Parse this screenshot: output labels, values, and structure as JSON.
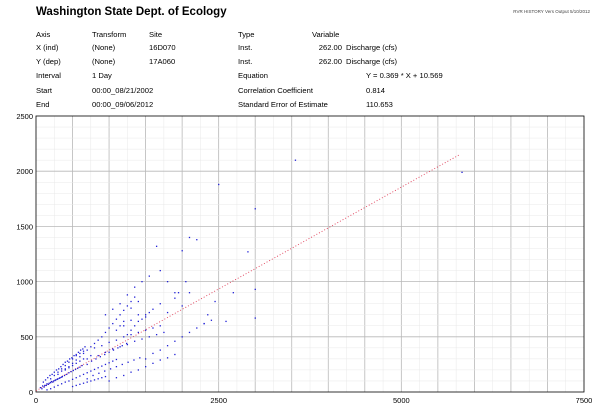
{
  "header": {
    "title": "Washington State Dept. of Ecology",
    "stamp": "RVR HISTORY Vers Output 5/10/2012",
    "columns": {
      "axis": "Axis",
      "transform": "Transform",
      "site": "Site",
      "type": "Type",
      "variable": "Variable"
    },
    "x_row": {
      "axis": "X (ind)",
      "transform": "(None)",
      "site": "16D070",
      "type": "Inst.",
      "code": "262.00",
      "variable": "Discharge (cfs)"
    },
    "y_row": {
      "axis": "Y (dep)",
      "transform": "(None)",
      "site": "17A060",
      "type": "Inst.",
      "code": "262.00",
      "variable": "Discharge (cfs)"
    },
    "interval": {
      "label": "Interval",
      "value": "1 Day"
    },
    "start": {
      "label": "Start",
      "value": "00:00_08/21/2002"
    },
    "end": {
      "label": "End",
      "value": "00:00_09/06/2012"
    },
    "equation": {
      "label": "Equation",
      "value": "Y = 0.369 * X + 10.569"
    },
    "correlation": {
      "label": "Correlation Coefficient",
      "value": "0.814"
    },
    "std_error": {
      "label": "Standard Error of Estimate",
      "value": "110.653"
    }
  },
  "chart_data": {
    "type": "scatter",
    "title": "",
    "xlabel": "",
    "ylabel": "",
    "xlim": [
      0,
      7500
    ],
    "ylim": [
      0,
      2500
    ],
    "x_ticks": [
      0,
      2500,
      5000,
      7500
    ],
    "y_ticks": [
      0,
      500,
      1000,
      1500,
      2000,
      2500
    ],
    "x_tick_labels": [
      "0",
      "2500",
      "5000",
      "7500"
    ],
    "y_tick_labels": [
      "0",
      "500",
      "1000",
      "1500",
      "2000",
      "2500"
    ],
    "grid": true,
    "point_color": "#1f1fd6",
    "regression": {
      "slope": 0.369,
      "intercept": 10.569,
      "x_range": [
        0,
        5800
      ],
      "color": "#e0405a",
      "style": "dotted"
    },
    "series": [
      {
        "points": [
          [
            60,
            40
          ],
          [
            90,
            55
          ],
          [
            120,
            60
          ],
          [
            150,
            75
          ],
          [
            180,
            80
          ],
          [
            210,
            95
          ],
          [
            240,
            100
          ],
          [
            270,
            110
          ],
          [
            300,
            120
          ],
          [
            330,
            130
          ],
          [
            360,
            140
          ],
          [
            390,
            150
          ],
          [
            420,
            160
          ],
          [
            450,
            175
          ],
          [
            480,
            185
          ],
          [
            510,
            195
          ],
          [
            540,
            205
          ],
          [
            570,
            215
          ],
          [
            600,
            225
          ],
          [
            630,
            240
          ],
          [
            80,
            30
          ],
          [
            110,
            45
          ],
          [
            140,
            60
          ],
          [
            170,
            70
          ],
          [
            200,
            85
          ],
          [
            230,
            90
          ],
          [
            260,
            105
          ],
          [
            290,
            115
          ],
          [
            320,
            125
          ],
          [
            350,
            135
          ],
          [
            100,
            90
          ],
          [
            130,
            110
          ],
          [
            160,
            130
          ],
          [
            190,
            150
          ],
          [
            220,
            160
          ],
          [
            250,
            180
          ],
          [
            280,
            200
          ],
          [
            310,
            210
          ],
          [
            340,
            230
          ],
          [
            370,
            250
          ],
          [
            400,
            270
          ],
          [
            430,
            280
          ],
          [
            460,
            300
          ],
          [
            490,
            310
          ],
          [
            520,
            330
          ],
          [
            550,
            340
          ],
          [
            580,
            360
          ],
          [
            610,
            380
          ],
          [
            640,
            390
          ],
          [
            670,
            410
          ],
          [
            150,
            20
          ],
          [
            200,
            30
          ],
          [
            250,
            45
          ],
          [
            300,
            60
          ],
          [
            350,
            75
          ],
          [
            400,
            90
          ],
          [
            450,
            100
          ],
          [
            500,
            115
          ],
          [
            550,
            130
          ],
          [
            600,
            145
          ],
          [
            650,
            160
          ],
          [
            700,
            175
          ],
          [
            750,
            190
          ],
          [
            800,
            205
          ],
          [
            850,
            220
          ],
          [
            900,
            235
          ],
          [
            950,
            250
          ],
          [
            1000,
            265
          ],
          [
            1050,
            280
          ],
          [
            1100,
            295
          ],
          [
            700,
            250
          ],
          [
            760,
            280
          ],
          [
            820,
            300
          ],
          [
            880,
            320
          ],
          [
            940,
            340
          ],
          [
            1000,
            360
          ],
          [
            1060,
            380
          ],
          [
            1120,
            400
          ],
          [
            1180,
            420
          ],
          [
            1240,
            440
          ],
          [
            700,
            120
          ],
          [
            780,
            150
          ],
          [
            860,
            170
          ],
          [
            940,
            190
          ],
          [
            1020,
            210
          ],
          [
            1100,
            230
          ],
          [
            1180,
            250
          ],
          [
            1260,
            270
          ],
          [
            1340,
            290
          ],
          [
            1420,
            310
          ],
          [
            800,
            400
          ],
          [
            900,
            420
          ],
          [
            1000,
            450
          ],
          [
            1100,
            470
          ],
          [
            1200,
            500
          ],
          [
            1300,
            520
          ],
          [
            1400,
            540
          ],
          [
            1500,
            560
          ],
          [
            1600,
            580
          ],
          [
            1700,
            600
          ],
          [
            850,
            330
          ],
          [
            950,
            360
          ],
          [
            1050,
            390
          ],
          [
            1150,
            410
          ],
          [
            1250,
            430
          ],
          [
            1350,
            460
          ],
          [
            1450,
            480
          ],
          [
            1550,
            500
          ],
          [
            1650,
            520
          ],
          [
            1750,
            540
          ],
          [
            1000,
            100
          ],
          [
            1100,
            130
          ],
          [
            1200,
            150
          ],
          [
            1300,
            180
          ],
          [
            1400,
            200
          ],
          [
            1500,
            230
          ],
          [
            1600,
            260
          ],
          [
            1700,
            290
          ],
          [
            1800,
            310
          ],
          [
            1900,
            340
          ],
          [
            500,
            50
          ],
          [
            550,
            60
          ],
          [
            600,
            70
          ],
          [
            650,
            80
          ],
          [
            700,
            90
          ],
          [
            750,
            100
          ],
          [
            800,
            110
          ],
          [
            850,
            120
          ],
          [
            900,
            130
          ],
          [
            950,
            140
          ],
          [
            1200,
            600
          ],
          [
            1300,
            650
          ],
          [
            1400,
            700
          ],
          [
            1500,
            680
          ],
          [
            1600,
            750
          ],
          [
            1700,
            800
          ],
          [
            1800,
            720
          ],
          [
            1900,
            850
          ],
          [
            2000,
            780
          ],
          [
            2100,
            900
          ],
          [
            1500,
            300
          ],
          [
            1600,
            350
          ],
          [
            1700,
            380
          ],
          [
            1800,
            420
          ],
          [
            1900,
            460
          ],
          [
            2000,
            500
          ],
          [
            2100,
            540
          ],
          [
            2200,
            580
          ],
          [
            2300,
            620
          ],
          [
            2400,
            650
          ],
          [
            1650,
            1320
          ],
          [
            1700,
            1100
          ],
          [
            1800,
            1000
          ],
          [
            1900,
            900
          ],
          [
            2000,
            1280
          ],
          [
            2100,
            1400
          ],
          [
            2200,
            1380
          ],
          [
            1550,
            1050
          ],
          [
            1450,
            1000
          ],
          [
            1350,
            950
          ],
          [
            2500,
            1880
          ],
          [
            3000,
            1660
          ],
          [
            2900,
            1270
          ],
          [
            3000,
            930
          ],
          [
            3000,
            670
          ],
          [
            2600,
            640
          ],
          [
            2300,
            620
          ],
          [
            2350,
            700
          ],
          [
            2450,
            820
          ],
          [
            2700,
            900
          ],
          [
            3550,
            2100
          ],
          [
            5830,
            1990
          ],
          [
            1950,
            900
          ],
          [
            2050,
            1000
          ],
          [
            1250,
            880
          ],
          [
            1150,
            800
          ],
          [
            1050,
            750
          ],
          [
            950,
            700
          ],
          [
            1300,
            760
          ],
          [
            1400,
            820
          ],
          [
            400,
            200
          ],
          [
            450,
            230
          ],
          [
            500,
            260
          ],
          [
            550,
            290
          ],
          [
            600,
            320
          ],
          [
            650,
            350
          ],
          [
            700,
            380
          ],
          [
            750,
            410
          ],
          [
            800,
            440
          ],
          [
            850,
            470
          ],
          [
            300,
            180
          ],
          [
            350,
            210
          ],
          [
            400,
            240
          ],
          [
            450,
            270
          ],
          [
            500,
            300
          ],
          [
            550,
            330
          ],
          [
            600,
            350
          ],
          [
            650,
            370
          ],
          [
            700,
            300
          ],
          [
            750,
            330
          ],
          [
            200,
            120
          ],
          [
            250,
            150
          ],
          [
            300,
            160
          ],
          [
            350,
            190
          ],
          [
            400,
            210
          ],
          [
            450,
            220
          ],
          [
            500,
            240
          ],
          [
            550,
            260
          ],
          [
            600,
            280
          ],
          [
            650,
            300
          ],
          [
            1100,
            560
          ],
          [
            1150,
            600
          ],
          [
            1200,
            640
          ],
          [
            1250,
            520
          ],
          [
            1300,
            560
          ],
          [
            1350,
            600
          ],
          [
            1400,
            640
          ],
          [
            1450,
            660
          ],
          [
            1500,
            700
          ],
          [
            1550,
            720
          ],
          [
            900,
            500
          ],
          [
            950,
            540
          ],
          [
            1000,
            580
          ],
          [
            1050,
            620
          ],
          [
            1100,
            660
          ],
          [
            1150,
            700
          ],
          [
            1200,
            740
          ],
          [
            1250,
            780
          ],
          [
            1300,
            820
          ],
          [
            1350,
            860
          ]
        ]
      }
    ]
  }
}
